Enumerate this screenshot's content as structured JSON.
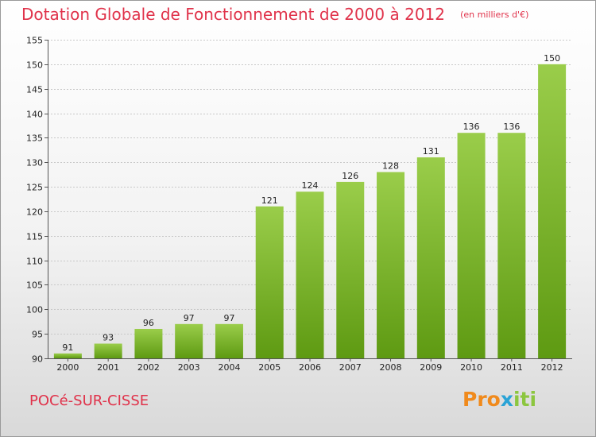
{
  "header": {
    "title": "Dotation Globale de Fonctionnement de 2000 à 2012",
    "unit": "(en milliers d'€)"
  },
  "footer": {
    "town": "POCé-SUR-CISSE",
    "logo_parts": [
      "Pro",
      "x",
      "iti"
    ]
  },
  "colors": {
    "bar_top": "#9acd4a",
    "bar_bottom": "#5e9a12",
    "title": "#e0324a",
    "grid": "#c8c8c8"
  },
  "chart_data": {
    "type": "bar",
    "title": "Dotation Globale de Fonctionnement de 2000 à 2012",
    "subtitle": "(en milliers d'€)",
    "xlabel": "",
    "ylabel": "",
    "categories": [
      "2000",
      "2001",
      "2002",
      "2003",
      "2004",
      "2005",
      "2006",
      "2007",
      "2008",
      "2009",
      "2010",
      "2011",
      "2012"
    ],
    "values": [
      91,
      93,
      96,
      97,
      97,
      121,
      124,
      126,
      128,
      131,
      136,
      136,
      150
    ],
    "ylim": [
      90,
      155
    ],
    "yticks": [
      90,
      95,
      100,
      105,
      110,
      115,
      120,
      125,
      130,
      135,
      140,
      145,
      150,
      155
    ],
    "grid": true,
    "legend": "none"
  }
}
